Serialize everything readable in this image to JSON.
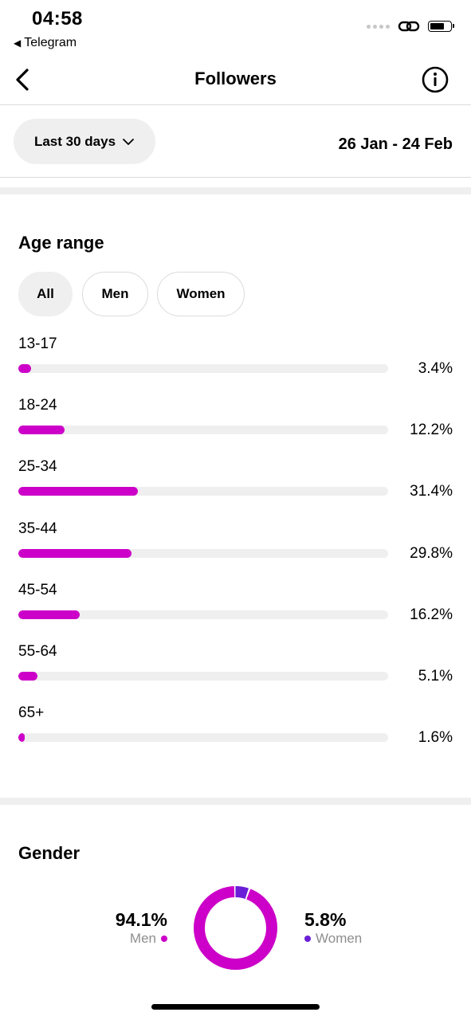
{
  "status_bar": {
    "time": "04:58",
    "back_app": "Telegram",
    "back_icon": "triangle-left-icon",
    "link_icon": "link-icon",
    "battery_icon": "battery-icon"
  },
  "header": {
    "title": "Followers",
    "back_icon": "chevron-left-icon",
    "info_icon": "info-icon"
  },
  "filter": {
    "period_label": "Last 30 days",
    "period_icon": "chevron-down-icon",
    "date_range": "26 Jan - 24 Feb"
  },
  "age_range": {
    "title": "Age range",
    "tabs": [
      {
        "label": "All",
        "active": true
      },
      {
        "label": "Men",
        "active": false
      },
      {
        "label": "Women",
        "active": false
      }
    ],
    "rows": [
      {
        "label": "13-17",
        "percent": "3.4%",
        "value": 3.4
      },
      {
        "label": "18-24",
        "percent": "12.2%",
        "value": 12.2
      },
      {
        "label": "25-34",
        "percent": "31.4%",
        "value": 31.4
      },
      {
        "label": "35-44",
        "percent": "29.8%",
        "value": 29.8
      },
      {
        "label": "45-54",
        "percent": "16.2%",
        "value": 16.2
      },
      {
        "label": "55-64",
        "percent": "5.1%",
        "value": 5.1
      },
      {
        "label": "65+",
        "percent": "1.6%",
        "value": 1.6
      }
    ],
    "bar_color": "#cc00c8"
  },
  "gender": {
    "title": "Gender",
    "men": {
      "percent": "94.1%",
      "label": "Men",
      "value": 94.1,
      "color": "#cc00c8"
    },
    "women": {
      "percent": "5.8%",
      "label": "Women",
      "value": 5.8,
      "color": "#6a1ed8"
    }
  }
}
